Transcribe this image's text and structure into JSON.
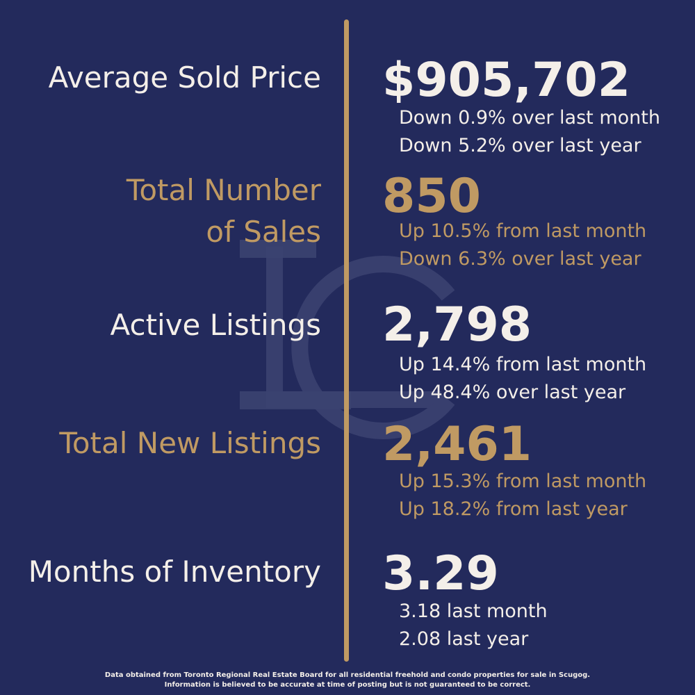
{
  "theme": {
    "background": "#232a5c",
    "accent_gold": "#c09a63",
    "text_light": "#f4efe9"
  },
  "watermark": {
    "icon": "lc-monogram-watermark-icon"
  },
  "stats": [
    {
      "label": "Average Sold Price",
      "value": "$905,702",
      "sub1": "Down 0.9% over last month",
      "sub2": "Down 5.2% over last year"
    },
    {
      "label_line1": "Total Number",
      "label_line2": "of Sales",
      "value": "850",
      "sub1": "Up 10.5% from last month",
      "sub2": "Down 6.3% over last year"
    },
    {
      "label": "Active Listings",
      "value": "2,798",
      "sub1": "Up 14.4% from last month",
      "sub2": "Up 48.4% over last year"
    },
    {
      "label": "Total New Listings",
      "value": "2,461",
      "sub1": "Up 15.3% from last month",
      "sub2": "Up 18.2% from last year"
    },
    {
      "label": "Months of Inventory",
      "value": "3.29",
      "sub1": "3.18 last month",
      "sub2": "2.08 last year"
    }
  ],
  "footer": {
    "line1": "Data obtained from Toronto Regional Real Estate Board for all residential freehold and condo properties for sale in Scugog.",
    "line2": "Information is believed to be accurate at time of posting but is not guaranteed to be correct."
  }
}
